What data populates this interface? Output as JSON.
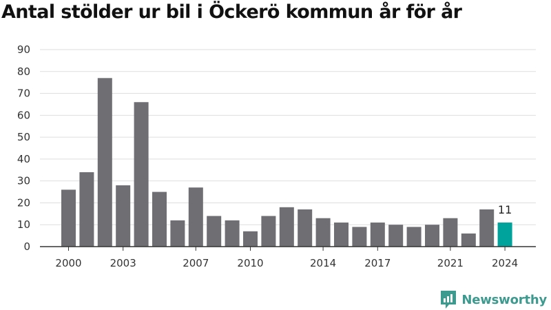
{
  "brand": {
    "name": "Newsworthy",
    "accent_color": "#00a39b",
    "bar_color": "#6e6e73",
    "logo_color": "#3d9a8f"
  },
  "chart_data": {
    "type": "bar",
    "title": "Antal stölder ur bil i Öckerö kommun år för år",
    "xlabel": "",
    "ylabel": "",
    "ylim": [
      0,
      90
    ],
    "yticks": [
      0,
      10,
      20,
      30,
      40,
      50,
      60,
      70,
      80,
      90
    ],
    "grid": true,
    "categories": [
      2000,
      2001,
      2002,
      2003,
      2004,
      2005,
      2006,
      2007,
      2008,
      2009,
      2010,
      2011,
      2012,
      2013,
      2014,
      2015,
      2016,
      2017,
      2018,
      2019,
      2020,
      2021,
      2022,
      2023,
      2024
    ],
    "values": [
      26,
      34,
      77,
      28,
      66,
      25,
      12,
      27,
      14,
      12,
      7,
      14,
      18,
      17,
      13,
      11,
      9,
      11,
      10,
      9,
      10,
      13,
      6,
      17,
      11
    ],
    "xtick_labels": [
      2000,
      2003,
      2007,
      2010,
      2014,
      2017,
      2021,
      2024
    ],
    "highlight": {
      "category": 2024,
      "label": "11"
    }
  }
}
